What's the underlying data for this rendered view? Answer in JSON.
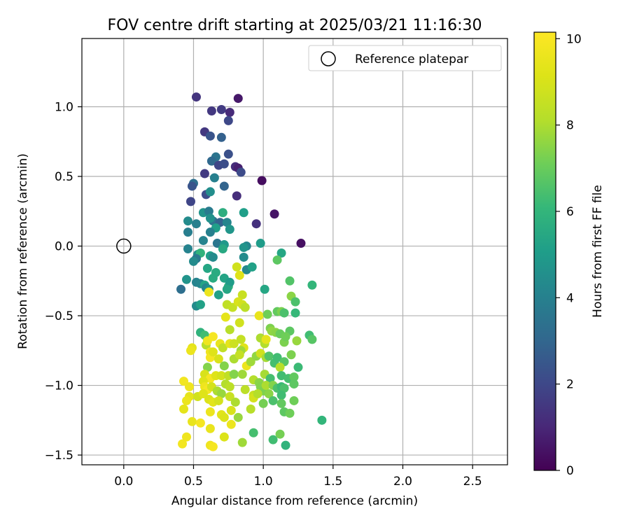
{
  "chart_data": {
    "type": "scatter",
    "title": "FOV centre drift starting at 2025/03/21 11:16:30",
    "xlabel": "Angular distance from reference (arcmin)",
    "ylabel": "Rotation from reference (arcmin)",
    "xlim": [
      -0.3,
      2.75
    ],
    "ylim": [
      -1.57,
      1.49
    ],
    "xticks": [
      0.0,
      0.5,
      1.0,
      1.5,
      2.0,
      2.5
    ],
    "xtick_labels": [
      "0.0",
      "0.5",
      "1.0",
      "1.5",
      "2.0",
      "2.5"
    ],
    "yticks": [
      1.0,
      0.5,
      0.0,
      -0.5,
      -1.0,
      -1.5
    ],
    "ytick_labels": [
      "1.0",
      "0.5",
      "0.0",
      "−0.5",
      "−1.0",
      "−1.5"
    ],
    "grid": true,
    "legend": {
      "position": "top-right",
      "entries": [
        "Reference platepar"
      ]
    },
    "colorbar": {
      "label": "Hours from first FF file",
      "colormap": "viridis",
      "range": [
        0,
        10.15
      ],
      "ticks": [
        0,
        2,
        4,
        6,
        8,
        10
      ],
      "tick_labels": [
        "0",
        "2",
        "4",
        "6",
        "8",
        "10"
      ]
    },
    "reference_point": {
      "x": 0.0,
      "y": 0.0
    },
    "points": [
      [
        0.52,
        1.07,
        1.4
      ],
      [
        0.82,
        1.06,
        0.6
      ],
      [
        0.63,
        0.97,
        1.5
      ],
      [
        0.7,
        0.98,
        1.6
      ],
      [
        0.76,
        0.96,
        1.1
      ],
      [
        0.75,
        0.9,
        2.0
      ],
      [
        0.58,
        0.82,
        1.5
      ],
      [
        0.62,
        0.79,
        2.4
      ],
      [
        0.7,
        0.78,
        2.8
      ],
      [
        0.66,
        0.64,
        3.5
      ],
      [
        0.75,
        0.66,
        2.3
      ],
      [
        0.63,
        0.61,
        3.1
      ],
      [
        0.68,
        0.58,
        1.9
      ],
      [
        0.72,
        0.59,
        2.2
      ],
      [
        0.8,
        0.57,
        1.2
      ],
      [
        0.82,
        0.56,
        0.8
      ],
      [
        0.84,
        0.53,
        2.1
      ],
      [
        0.58,
        0.52,
        1.6
      ],
      [
        0.65,
        0.49,
        4.0
      ],
      [
        0.5,
        0.45,
        3.3
      ],
      [
        0.49,
        0.43,
        2.4
      ],
      [
        0.72,
        0.43,
        2.9
      ],
      [
        0.59,
        0.37,
        2.2
      ],
      [
        0.62,
        0.39,
        4.5
      ],
      [
        0.81,
        0.36,
        1.2
      ],
      [
        0.99,
        0.47,
        0.3
      ],
      [
        0.48,
        0.32,
        1.9
      ],
      [
        0.57,
        0.24,
        4.7
      ],
      [
        0.61,
        0.25,
        3.8
      ],
      [
        0.71,
        0.24,
        5.7
      ],
      [
        0.86,
        0.24,
        5.1
      ],
      [
        0.46,
        0.18,
        4.4
      ],
      [
        0.52,
        0.16,
        4.0
      ],
      [
        0.64,
        0.18,
        3.5
      ],
      [
        0.69,
        0.17,
        2.9
      ],
      [
        0.74,
        0.17,
        4.2
      ],
      [
        0.62,
        0.2,
        4.6
      ],
      [
        0.66,
        0.13,
        5.1
      ],
      [
        0.46,
        0.1,
        3.9
      ],
      [
        0.62,
        0.1,
        4.0
      ],
      [
        0.76,
        0.12,
        4.8
      ],
      [
        0.95,
        0.16,
        1.3
      ],
      [
        1.08,
        0.23,
        0.5
      ],
      [
        0.57,
        0.04,
        4.1
      ],
      [
        0.67,
        0.02,
        3.6
      ],
      [
        0.72,
        0.01,
        4.9
      ],
      [
        0.88,
        0.0,
        4.2
      ],
      [
        0.98,
        0.02,
        5.0
      ],
      [
        1.27,
        0.02,
        0.4
      ],
      [
        0.46,
        -0.02,
        4.1
      ],
      [
        0.71,
        -0.02,
        5.5
      ],
      [
        0.86,
        -0.01,
        4.7
      ],
      [
        0.53,
        -0.06,
        4.5
      ],
      [
        0.55,
        -0.05,
        5.9
      ],
      [
        0.62,
        -0.07,
        5.1
      ],
      [
        0.64,
        -0.08,
        4.4
      ],
      [
        0.52,
        -0.09,
        3.7
      ],
      [
        0.5,
        -0.11,
        4.4
      ],
      [
        0.86,
        -0.08,
        4.4
      ],
      [
        1.13,
        -0.05,
        5.4
      ],
      [
        1.1,
        -0.1,
        6.8
      ],
      [
        0.6,
        -0.16,
        5.4
      ],
      [
        0.66,
        -0.19,
        5.6
      ],
      [
        0.81,
        -0.15,
        8.8
      ],
      [
        0.88,
        -0.17,
        4.3
      ],
      [
        0.92,
        -0.15,
        5.2
      ],
      [
        0.64,
        -0.23,
        5.6
      ],
      [
        0.72,
        -0.23,
        5.3
      ],
      [
        0.75,
        -0.29,
        5.9
      ],
      [
        0.76,
        -0.26,
        5.0
      ],
      [
        0.83,
        -0.21,
        9.2
      ],
      [
        0.41,
        -0.31,
        3.3
      ],
      [
        0.45,
        -0.24,
        4.7
      ],
      [
        0.52,
        -0.26,
        4.1
      ],
      [
        0.55,
        -0.27,
        4.2
      ],
      [
        0.58,
        -0.28,
        5.3
      ],
      [
        0.59,
        -0.3,
        4.2
      ],
      [
        0.61,
        -0.31,
        4.6
      ],
      [
        0.61,
        -0.33,
        9.6
      ],
      [
        0.68,
        -0.35,
        5.2
      ],
      [
        0.74,
        -0.31,
        5.4
      ],
      [
        0.85,
        -0.35,
        8.6
      ],
      [
        1.01,
        -0.31,
        5.4
      ],
      [
        1.19,
        -0.25,
        6.6
      ],
      [
        1.35,
        -0.28,
        6.0
      ],
      [
        0.52,
        -0.43,
        4.4
      ],
      [
        0.55,
        -0.42,
        5.2
      ],
      [
        0.74,
        -0.42,
        8.4
      ],
      [
        0.78,
        -0.44,
        8.5
      ],
      [
        0.82,
        -0.4,
        9.0
      ],
      [
        0.85,
        -0.42,
        8.8
      ],
      [
        0.87,
        -0.44,
        8.3
      ],
      [
        1.2,
        -0.36,
        7.5
      ],
      [
        1.23,
        -0.4,
        6.5
      ],
      [
        0.97,
        -0.5,
        9.5
      ],
      [
        1.03,
        -0.49,
        7.1
      ],
      [
        1.1,
        -0.47,
        6.9
      ],
      [
        1.13,
        -0.47,
        7.3
      ],
      [
        1.15,
        -0.48,
        6.5
      ],
      [
        1.23,
        -0.48,
        6.1
      ],
      [
        0.73,
        -0.51,
        9.4
      ],
      [
        0.76,
        -0.6,
        8.2
      ],
      [
        0.83,
        -0.55,
        8.8
      ],
      [
        1.05,
        -0.59,
        7.3
      ],
      [
        1.06,
        -0.61,
        7.6
      ],
      [
        1.09,
        -0.62,
        7.5
      ],
      [
        1.12,
        -0.63,
        7.0
      ],
      [
        1.19,
        -0.61,
        6.8
      ],
      [
        0.55,
        -0.62,
        5.9
      ],
      [
        0.58,
        -0.64,
        6.3
      ],
      [
        0.59,
        -0.71,
        8.2
      ],
      [
        0.49,
        -0.73,
        9.4
      ],
      [
        0.48,
        -0.75,
        9.6
      ],
      [
        0.6,
        -0.68,
        9.7
      ],
      [
        0.64,
        -0.65,
        9.9
      ],
      [
        0.69,
        -0.7,
        9.5
      ],
      [
        0.71,
        -0.73,
        8.4
      ],
      [
        0.76,
        -0.7,
        9.4
      ],
      [
        0.79,
        -0.7,
        8.7
      ],
      [
        0.84,
        -0.67,
        8.5
      ],
      [
        0.86,
        -0.73,
        9.2
      ],
      [
        0.84,
        -0.75,
        7.8
      ],
      [
        0.98,
        -0.66,
        8.0
      ],
      [
        1.01,
        -0.7,
        8.1
      ],
      [
        1.02,
        -0.67,
        9.4
      ],
      [
        1.15,
        -0.69,
        7.3
      ],
      [
        1.16,
        -0.65,
        7.1
      ],
      [
        1.24,
        -0.68,
        7.7
      ],
      [
        1.33,
        -0.64,
        6.3
      ],
      [
        1.35,
        -0.67,
        6.7
      ],
      [
        0.62,
        -0.76,
        9.7
      ],
      [
        0.62,
        -0.8,
        9.9
      ],
      [
        0.64,
        -0.76,
        9.2
      ],
      [
        0.68,
        -0.81,
        9.0
      ],
      [
        0.72,
        -0.86,
        7.4
      ],
      [
        0.79,
        -0.81,
        8.0
      ],
      [
        0.83,
        -0.78,
        8.5
      ],
      [
        0.88,
        -0.86,
        9.6
      ],
      [
        0.91,
        -0.83,
        7.8
      ],
      [
        0.95,
        -0.79,
        7.6
      ],
      [
        0.98,
        -0.77,
        8.8
      ],
      [
        1.02,
        -0.8,
        7.9
      ],
      [
        1.04,
        -0.79,
        6.6
      ],
      [
        1.08,
        -0.84,
        6.4
      ],
      [
        1.1,
        -0.8,
        6.3
      ],
      [
        1.15,
        -0.83,
        6.7
      ],
      [
        1.2,
        -0.78,
        7.3
      ],
      [
        1.25,
        -0.87,
        6.2
      ],
      [
        0.6,
        -0.87,
        7.4
      ],
      [
        0.58,
        -0.92,
        9.0
      ],
      [
        0.62,
        -0.95,
        9.9
      ],
      [
        0.66,
        -0.93,
        9.2
      ],
      [
        0.7,
        -0.93,
        8.9
      ],
      [
        0.75,
        -0.93,
        8.4
      ],
      [
        0.79,
        -0.92,
        7.4
      ],
      [
        0.85,
        -0.92,
        7.8
      ],
      [
        0.93,
        -0.96,
        8.1
      ],
      [
        0.97,
        -0.98,
        7.5
      ],
      [
        1.01,
        -0.92,
        7.9
      ],
      [
        1.05,
        -0.95,
        6.4
      ],
      [
        1.12,
        -0.87,
        8.2
      ],
      [
        1.13,
        -0.93,
        6.3
      ],
      [
        1.18,
        -0.95,
        6.4
      ],
      [
        1.22,
        -0.94,
        6.9
      ],
      [
        0.43,
        -0.97,
        9.8
      ],
      [
        0.47,
        -1.01,
        9.7
      ],
      [
        0.57,
        -0.97,
        9.2
      ],
      [
        0.58,
        -1.01,
        9.7
      ],
      [
        0.6,
        -1.03,
        9.9
      ],
      [
        0.63,
        -1.01,
        8.9
      ],
      [
        0.67,
        -1.04,
        8.0
      ],
      [
        0.7,
        -1.06,
        7.7
      ],
      [
        0.73,
        -0.99,
        8.1
      ],
      [
        0.76,
        -1.01,
        8.3
      ],
      [
        0.87,
        -1.03,
        8.3
      ],
      [
        0.93,
        -1.07,
        8.6
      ],
      [
        0.98,
        -1.01,
        7.4
      ],
      [
        1.0,
        -1.04,
        7.3
      ],
      [
        1.02,
        -1.0,
        8.0
      ],
      [
        1.07,
        -1.0,
        7.4
      ],
      [
        1.1,
        -1.02,
        6.5
      ],
      [
        1.13,
        -1.01,
        6.2
      ],
      [
        1.15,
        -1.02,
        6.5
      ],
      [
        1.22,
        -0.99,
        6.8
      ],
      [
        0.47,
        -1.08,
        9.4
      ],
      [
        0.45,
        -1.11,
        9.6
      ],
      [
        0.53,
        -1.08,
        8.8
      ],
      [
        0.57,
        -1.06,
        9.2
      ],
      [
        0.61,
        -1.1,
        9.1
      ],
      [
        0.64,
        -1.12,
        9.3
      ],
      [
        0.68,
        -1.11,
        8.9
      ],
      [
        0.76,
        -1.08,
        8.6
      ],
      [
        0.8,
        -1.12,
        8.0
      ],
      [
        0.93,
        -1.09,
        8.9
      ],
      [
        0.96,
        -1.06,
        8.1
      ],
      [
        1.0,
        -1.13,
        7.2
      ],
      [
        1.04,
        -1.06,
        7.5
      ],
      [
        1.07,
        -1.11,
        6.5
      ],
      [
        1.13,
        -1.07,
        6.3
      ],
      [
        1.13,
        -1.13,
        6.9
      ],
      [
        1.22,
        -1.11,
        7.1
      ],
      [
        0.43,
        -1.17,
        9.4
      ],
      [
        0.62,
        -1.19,
        9.6
      ],
      [
        0.7,
        -1.21,
        9.3
      ],
      [
        0.72,
        -1.23,
        9.1
      ],
      [
        0.77,
        -1.18,
        9.0
      ],
      [
        0.82,
        -1.23,
        7.7
      ],
      [
        0.91,
        -1.17,
        8.2
      ],
      [
        1.15,
        -1.19,
        6.8
      ],
      [
        1.19,
        -1.2,
        7.1
      ],
      [
        1.42,
        -1.25,
        6.0
      ],
      [
        0.49,
        -1.26,
        9.5
      ],
      [
        0.55,
        -1.27,
        9.9
      ],
      [
        0.62,
        -1.31,
        9.5
      ],
      [
        0.72,
        -1.37,
        9.1
      ],
      [
        0.77,
        -1.28,
        9.6
      ],
      [
        0.85,
        -1.41,
        7.8
      ],
      [
        0.93,
        -1.34,
        6.4
      ],
      [
        1.07,
        -1.39,
        6.3
      ],
      [
        1.12,
        -1.35,
        7.2
      ],
      [
        1.16,
        -1.43,
        5.9
      ],
      [
        0.42,
        -1.42,
        9.8
      ],
      [
        0.45,
        -1.37,
        9.7
      ],
      [
        0.62,
        -1.43,
        9.7
      ],
      [
        0.64,
        -1.44,
        9.9
      ]
    ]
  }
}
